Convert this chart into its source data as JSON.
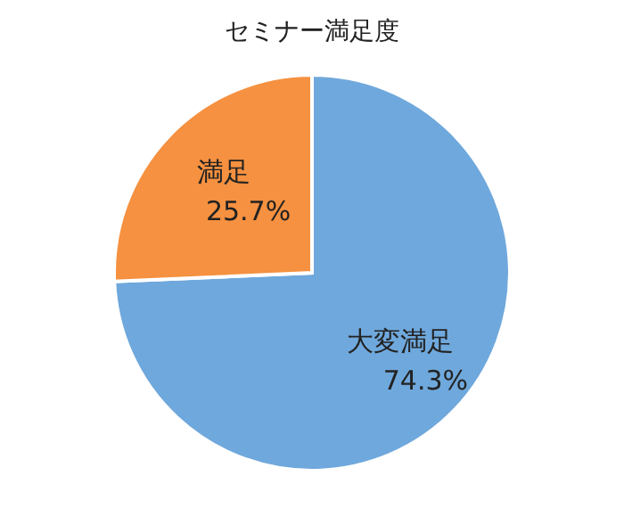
{
  "chart_data": {
    "type": "pie",
    "title": "セミナー満足度",
    "categories": [
      "大変満足",
      "満足"
    ],
    "values": [
      74.3,
      25.7
    ],
    "colors": [
      "#6fa8dc",
      "#f59140"
    ],
    "value_labels": [
      "74.3%",
      "25.7%"
    ]
  }
}
